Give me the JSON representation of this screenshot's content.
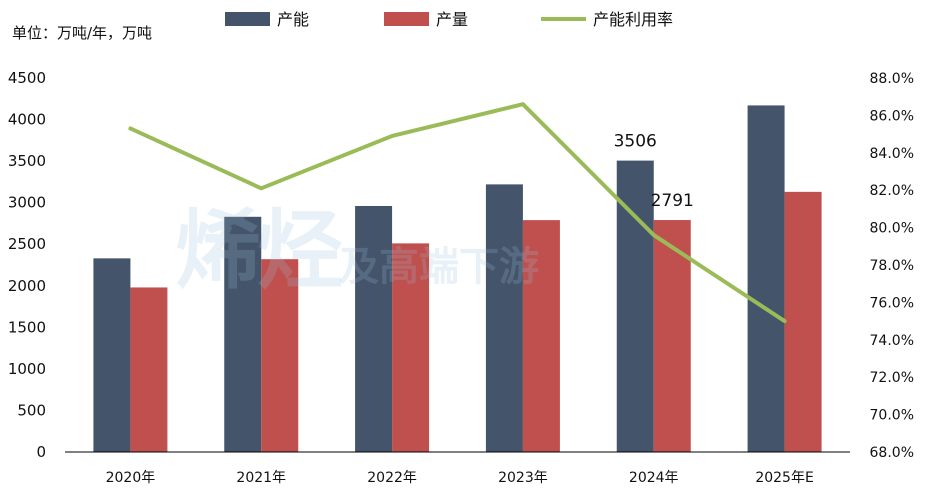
{
  "unit_label": "单位：万吨/年，万吨",
  "watermark": {
    "big": "烯烃",
    "small": "及高端下游"
  },
  "colors": {
    "capacity": "#44546A",
    "output": "#C0504D",
    "utilization": "#9BBB59",
    "axis": "#000000"
  },
  "chart_data": {
    "type": "bar",
    "categories": [
      "2020年",
      "2021年",
      "2022年",
      "2023年",
      "2024年",
      "2025年E"
    ],
    "series": [
      {
        "name": "产能",
        "kind": "bar",
        "axis": "left",
        "values": [
          2330,
          2830,
          2960,
          3220,
          3506,
          4170
        ]
      },
      {
        "name": "产量",
        "kind": "bar",
        "axis": "left",
        "values": [
          1980,
          2320,
          2510,
          2790,
          2791,
          3130
        ]
      },
      {
        "name": "产能利用率",
        "kind": "line",
        "axis": "right",
        "values": [
          85.3,
          82.1,
          84.9,
          86.6,
          79.6,
          75.0
        ]
      }
    ],
    "y_left": {
      "min": 0,
      "max": 4500,
      "ticks": [
        "0",
        "500",
        "1000",
        "1500",
        "2000",
        "2500",
        "3000",
        "3500",
        "4000",
        "4500"
      ]
    },
    "y_right": {
      "min": 68,
      "max": 88,
      "ticks": [
        "68.0%",
        "70.0%",
        "72.0%",
        "74.0%",
        "76.0%",
        "78.0%",
        "80.0%",
        "82.0%",
        "84.0%",
        "86.0%",
        "88.0%"
      ]
    },
    "data_labels": [
      {
        "series": 0,
        "index": 4,
        "text": "3506"
      },
      {
        "series": 1,
        "index": 4,
        "text": "2791"
      }
    ],
    "legend_position": "top",
    "grid": false
  }
}
